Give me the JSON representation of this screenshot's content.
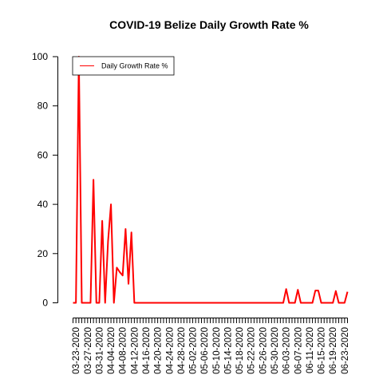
{
  "chart_data": {
    "type": "line",
    "title": "COVID-19 Belize Daily Growth Rate %",
    "xlabel": "",
    "ylabel": "",
    "ylim": [
      0,
      100
    ],
    "yticks": [
      0,
      20,
      40,
      60,
      80,
      100
    ],
    "x_start": "03-22-2020",
    "x_label_every": 4,
    "x_labels": [
      "03-23-2020",
      "03-27-2020",
      "03-31-2020",
      "04-04-2020",
      "04-08-2020",
      "04-12-2020",
      "04-16-2020",
      "04-20-2020",
      "04-24-2020",
      "04-28-2020",
      "05-02-2020",
      "05-06-2020",
      "05-10-2020",
      "05-14-2020",
      "05-18-2020",
      "05-22-2020",
      "05-26-2020",
      "05-30-2020",
      "06-03-2020",
      "06-07-2020",
      "06-11-2020",
      "06-15-2020",
      "06-19-2020",
      "06-23-2020"
    ],
    "series": [
      {
        "name": "Daily Growth Rate %",
        "color": "#ff0000",
        "values": [
          0,
          0,
          100,
          0,
          0,
          0,
          0,
          50,
          0,
          0,
          33.3,
          0,
          25,
          40,
          0,
          14.3,
          12.5,
          11.1,
          30,
          7.7,
          28.6,
          0,
          0,
          0,
          0,
          0,
          0,
          0,
          0,
          0,
          0,
          0,
          0,
          0,
          0,
          0,
          0,
          0,
          0,
          0,
          0,
          0,
          0,
          0,
          0,
          0,
          0,
          0,
          0,
          0,
          0,
          0,
          0,
          0,
          0,
          0,
          0,
          0,
          0,
          0,
          0,
          0,
          0,
          0,
          0,
          0,
          0,
          0,
          0,
          0,
          0,
          0,
          0,
          5.6,
          0,
          0,
          0,
          5.3,
          0,
          0,
          0,
          0,
          0,
          5,
          5,
          0,
          0,
          0,
          0,
          0,
          4.8,
          0,
          0,
          0,
          4.5
        ]
      }
    ],
    "legend": {
      "entries": [
        "Daily Growth Rate %"
      ],
      "position": "top-left"
    },
    "grid": false
  }
}
